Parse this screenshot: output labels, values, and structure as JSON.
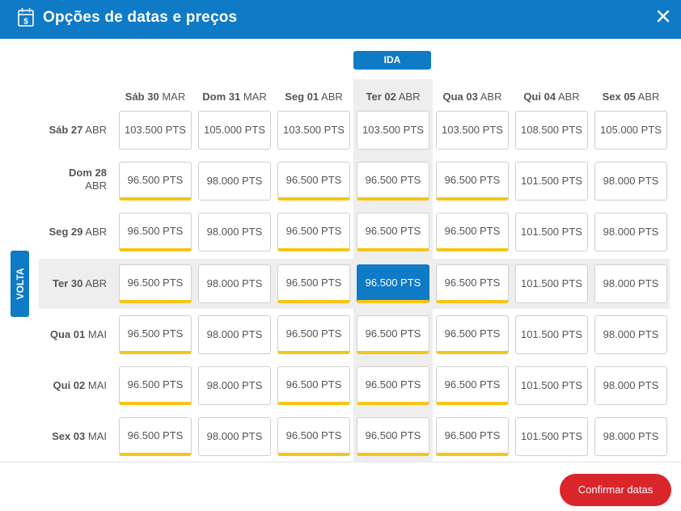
{
  "header": {
    "title": "Opções de datas e preços",
    "icon": "calendar-dollar-icon",
    "close_icon": "close-icon"
  },
  "ida_label": "IDA",
  "volta_label": "VOLTA",
  "columns": [
    {
      "day": "Sáb 30",
      "month": "MAR"
    },
    {
      "day": "Dom 31",
      "month": "MAR"
    },
    {
      "day": "Seg 01",
      "month": "ABR"
    },
    {
      "day": "Ter 02",
      "month": "ABR"
    },
    {
      "day": "Qua 03",
      "month": "ABR"
    },
    {
      "day": "Qui 04",
      "month": "ABR"
    },
    {
      "day": "Sex 05",
      "month": "ABR"
    }
  ],
  "rows": [
    {
      "day": "Sáb 27",
      "month": "ABR",
      "prices": [
        "103.500 PTS",
        "105.000 PTS",
        "103.500 PTS",
        "103.500 PTS",
        "103.500 PTS",
        "108.500 PTS",
        "105.000 PTS"
      ]
    },
    {
      "day": "Dom 28",
      "month": "ABR",
      "prices": [
        "96.500 PTS",
        "98.000 PTS",
        "96.500 PTS",
        "96.500 PTS",
        "96.500 PTS",
        "101.500 PTS",
        "98.000 PTS"
      ]
    },
    {
      "day": "Seg 29",
      "month": "ABR",
      "prices": [
        "96.500 PTS",
        "98.000 PTS",
        "96.500 PTS",
        "96.500 PTS",
        "96.500 PTS",
        "101.500 PTS",
        "98.000 PTS"
      ]
    },
    {
      "day": "Ter 30",
      "month": "ABR",
      "prices": [
        "96.500 PTS",
        "98.000 PTS",
        "96.500 PTS",
        "96.500 PTS",
        "96.500 PTS",
        "101.500 PTS",
        "98.000 PTS"
      ]
    },
    {
      "day": "Qua 01",
      "month": "MAI",
      "prices": [
        "96.500 PTS",
        "98.000 PTS",
        "96.500 PTS",
        "96.500 PTS",
        "96.500 PTS",
        "101.500 PTS",
        "98.000 PTS"
      ]
    },
    {
      "day": "Qui 02",
      "month": "MAI",
      "prices": [
        "96.500 PTS",
        "98.000 PTS",
        "96.500 PTS",
        "96.500 PTS",
        "96.500 PTS",
        "101.500 PTS",
        "98.000 PTS"
      ]
    },
    {
      "day": "Sex 03",
      "month": "MAI",
      "prices": [
        "96.500 PTS",
        "98.000 PTS",
        "96.500 PTS",
        "96.500 PTS",
        "96.500 PTS",
        "101.500 PTS",
        "98.000 PTS"
      ]
    }
  ],
  "selected": {
    "row": 3,
    "col": 3
  },
  "promo_price": "96.500 PTS",
  "confirm_label": "Confirmar datas",
  "colors": {
    "primary": "#0f7ac6",
    "promo_underline": "#f5c518",
    "confirm": "#d9262b"
  }
}
